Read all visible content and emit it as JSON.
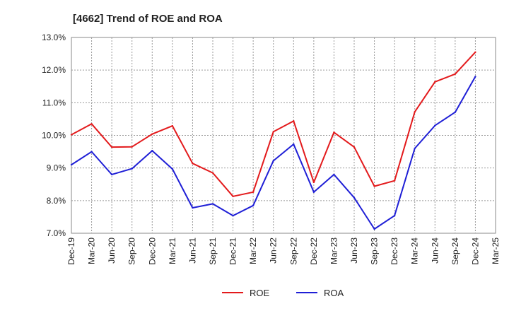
{
  "chart_data": {
    "type": "line",
    "title": "[4662]  Trend of ROE and ROA",
    "xlabel": "",
    "ylabel": "",
    "categories": [
      "Dec-19",
      "Mar-20",
      "Jun-20",
      "Sep-20",
      "Dec-20",
      "Mar-21",
      "Jun-21",
      "Sep-21",
      "Dec-21",
      "Mar-22",
      "Jun-22",
      "Sep-22",
      "Dec-22",
      "Mar-23",
      "Jun-23",
      "Sep-23",
      "Dec-23",
      "Mar-24",
      "Jun-24",
      "Sep-24",
      "Dec-24",
      "Mar-25"
    ],
    "yticks": [
      "7.0%",
      "8.0%",
      "9.0%",
      "10.0%",
      "11.0%",
      "12.0%",
      "13.0%"
    ],
    "ylim": [
      7.0,
      13.0
    ],
    "grid": true,
    "legend_position": "bottom",
    "series": [
      {
        "name": "ROE",
        "color": "#e31a1c",
        "values": [
          10.02,
          10.35,
          9.64,
          9.65,
          10.04,
          10.29,
          9.14,
          8.85,
          8.13,
          8.26,
          10.11,
          10.44,
          8.56,
          10.09,
          9.64,
          8.44,
          8.61,
          10.72,
          11.64,
          11.88,
          12.55,
          null
        ]
      },
      {
        "name": "ROA",
        "color": "#1f1fd6",
        "values": [
          9.1,
          9.5,
          8.8,
          8.98,
          9.53,
          8.97,
          7.78,
          7.9,
          7.54,
          7.85,
          9.22,
          9.73,
          8.26,
          8.8,
          8.09,
          7.13,
          7.54,
          9.6,
          10.3,
          10.71,
          11.8,
          null
        ]
      }
    ]
  }
}
